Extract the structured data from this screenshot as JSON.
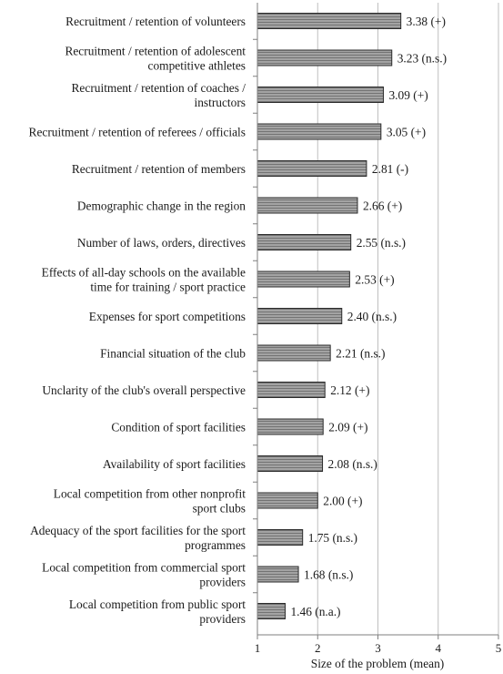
{
  "chart_data": {
    "type": "bar",
    "orientation": "horizontal",
    "categories": [
      [
        "Recruitment / retention of volunteers"
      ],
      [
        "Recruitment / retention of adolescent",
        "competitive athletes"
      ],
      [
        "Recruitment / retention of coaches /",
        "instructors"
      ],
      [
        "Recruitment / retention of referees / officials"
      ],
      [
        "Recruitment / retention of members"
      ],
      [
        "Demographic change in the region"
      ],
      [
        "Number of laws, orders, directives"
      ],
      [
        "Effects of all-day schools on the available",
        "time for training / sport practice"
      ],
      [
        "Expenses for sport competitions"
      ],
      [
        "Financial situation of the club"
      ],
      [
        "Unclarity of the club's overall perspective"
      ],
      [
        "Condition of sport facilities"
      ],
      [
        "Availability of sport facilities"
      ],
      [
        "Local competition from other nonprofit",
        "sport clubs"
      ],
      [
        "Adequacy of the sport facilities for the sport",
        "programmes"
      ],
      [
        "Local competition from commercial sport",
        "providers"
      ],
      [
        "Local competition from public sport",
        "providers"
      ]
    ],
    "values": [
      3.38,
      3.23,
      3.09,
      3.05,
      2.81,
      2.66,
      2.55,
      2.53,
      2.4,
      2.21,
      2.12,
      2.09,
      2.08,
      2.0,
      1.75,
      1.68,
      1.46
    ],
    "value_labels": [
      "3.38 (+)",
      "3.23 (n.s.)",
      "3.09 (+)",
      "3.05 (+)",
      "2.81 (-)",
      "2.66 (+)",
      "2.55 (n.s.)",
      "2.53 (+)",
      "2.40 (n.s.)",
      "2.21 (n.s.)",
      "2.12 (+)",
      "2.09 (+)",
      "2.08 (n.s.)",
      "2.00 (+)",
      "1.75 (n.s.)",
      "1.68 (n.s.)",
      "1.46 (n.a.)"
    ],
    "xlabel": "Size of the problem (mean)",
    "xlim": [
      1,
      5
    ],
    "xticks": [
      "1",
      "2",
      "3",
      "4",
      "5"
    ],
    "grid": "vertical",
    "bar_fill": "hatched-gray",
    "colors": {
      "bar_fill": "#a0a0a0",
      "bar_stroke": "#2b2b2b",
      "grid": "#bfbfbf",
      "axis": "#7f7f7f",
      "text": "#1a1a1a"
    }
  }
}
